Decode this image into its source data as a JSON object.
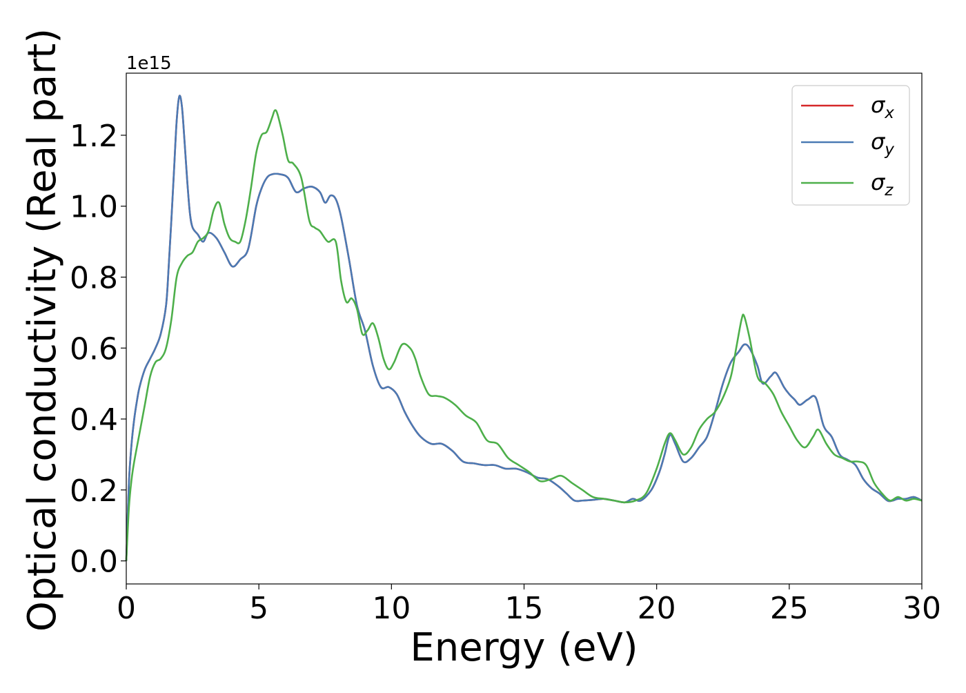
{
  "chart_data": {
    "type": "line",
    "xlabel": "Energy (eV)",
    "ylabel": "Optical conductivity (Real part)",
    "offset_text": "1e15",
    "xlim": [
      0,
      30
    ],
    "ylim": [
      -0.065,
      1.375
    ],
    "x_ticks": [
      0,
      5,
      10,
      15,
      20,
      25,
      30
    ],
    "x_tick_labels": [
      "0",
      "5",
      "10",
      "15",
      "20",
      "25",
      "30"
    ],
    "y_ticks": [
      0.0,
      0.2,
      0.4,
      0.6,
      0.8,
      1.0,
      1.2
    ],
    "y_tick_labels": [
      "0.0",
      "0.2",
      "0.4",
      "0.6",
      "0.8",
      "1.0",
      "1.2"
    ],
    "grid": false,
    "legend_position": "top-right",
    "series": [
      {
        "name": "σx",
        "legend_base": "σ",
        "legend_sub": "x",
        "color": "#d62728",
        "x": [
          0,
          0.1,
          0.2,
          0.3,
          0.4,
          0.5,
          0.7,
          0.9,
          1.1,
          1.3,
          1.5,
          1.6,
          1.7,
          1.8,
          1.9,
          2.0,
          2.1,
          2.2,
          2.3,
          2.4,
          2.5,
          2.7,
          2.9,
          3.1,
          3.4,
          3.7,
          4.0,
          4.3,
          4.6,
          4.9,
          5.1,
          5.3,
          5.5,
          5.8,
          6.1,
          6.4,
          6.7,
          7.0,
          7.3,
          7.5,
          7.7,
          7.9,
          8.1,
          8.4,
          8.7,
          9.0,
          9.3,
          9.6,
          9.9,
          10.2,
          10.5,
          10.8,
          11.1,
          11.5,
          11.9,
          12.3,
          12.7,
          13.1,
          13.5,
          13.9,
          14.3,
          14.7,
          15.1,
          15.5,
          15.9,
          16.3,
          16.6,
          16.9,
          17.2,
          17.6,
          18.0,
          18.4,
          18.8,
          19.1,
          19.4,
          19.8,
          20.1,
          20.3,
          20.5,
          20.7,
          21.0,
          21.3,
          21.6,
          21.9,
          22.2,
          22.5,
          22.8,
          23.1,
          23.3,
          23.5,
          23.8,
          24.0,
          24.3,
          24.5,
          24.8,
          25.0,
          25.2,
          25.4,
          25.7,
          26.0,
          26.3,
          26.6,
          26.9,
          27.2,
          27.5,
          27.8,
          28.1,
          28.4,
          28.7,
          28.9,
          29.1,
          29.4,
          29.7,
          30.0
        ],
        "y": [
          0.0,
          0.22,
          0.33,
          0.4,
          0.45,
          0.49,
          0.54,
          0.57,
          0.6,
          0.64,
          0.72,
          0.83,
          0.96,
          1.1,
          1.24,
          1.31,
          1.28,
          1.18,
          1.07,
          0.98,
          0.94,
          0.92,
          0.9,
          0.925,
          0.91,
          0.87,
          0.83,
          0.85,
          0.88,
          1.0,
          1.05,
          1.08,
          1.09,
          1.09,
          1.08,
          1.04,
          1.05,
          1.055,
          1.04,
          1.01,
          1.03,
          1.02,
          0.97,
          0.85,
          0.72,
          0.65,
          0.55,
          0.49,
          0.49,
          0.47,
          0.42,
          0.38,
          0.35,
          0.33,
          0.33,
          0.31,
          0.28,
          0.275,
          0.27,
          0.27,
          0.26,
          0.26,
          0.25,
          0.235,
          0.23,
          0.21,
          0.19,
          0.17,
          0.17,
          0.172,
          0.175,
          0.17,
          0.165,
          0.175,
          0.17,
          0.2,
          0.25,
          0.3,
          0.355,
          0.33,
          0.28,
          0.29,
          0.32,
          0.35,
          0.42,
          0.5,
          0.56,
          0.59,
          0.61,
          0.6,
          0.55,
          0.5,
          0.52,
          0.53,
          0.49,
          0.47,
          0.455,
          0.44,
          0.455,
          0.46,
          0.38,
          0.35,
          0.3,
          0.285,
          0.27,
          0.23,
          0.205,
          0.19,
          0.17,
          0.17,
          0.175,
          0.175,
          0.18,
          0.17
        ]
      },
      {
        "name": "σy",
        "legend_base": "σ",
        "legend_sub": "y",
        "color": "#4a7ab4",
        "x": [
          0,
          0.1,
          0.2,
          0.3,
          0.4,
          0.5,
          0.7,
          0.9,
          1.1,
          1.3,
          1.5,
          1.6,
          1.7,
          1.8,
          1.9,
          2.0,
          2.1,
          2.2,
          2.3,
          2.4,
          2.5,
          2.7,
          2.9,
          3.1,
          3.4,
          3.7,
          4.0,
          4.3,
          4.6,
          4.9,
          5.1,
          5.3,
          5.5,
          5.8,
          6.1,
          6.4,
          6.7,
          7.0,
          7.3,
          7.5,
          7.7,
          7.9,
          8.1,
          8.4,
          8.7,
          9.0,
          9.3,
          9.6,
          9.9,
          10.2,
          10.5,
          10.8,
          11.1,
          11.5,
          11.9,
          12.3,
          12.7,
          13.1,
          13.5,
          13.9,
          14.3,
          14.7,
          15.1,
          15.5,
          15.9,
          16.3,
          16.6,
          16.9,
          17.2,
          17.6,
          18.0,
          18.4,
          18.8,
          19.1,
          19.4,
          19.8,
          20.1,
          20.3,
          20.5,
          20.7,
          21.0,
          21.3,
          21.6,
          21.9,
          22.2,
          22.5,
          22.8,
          23.1,
          23.3,
          23.5,
          23.8,
          24.0,
          24.3,
          24.5,
          24.8,
          25.0,
          25.2,
          25.4,
          25.7,
          26.0,
          26.3,
          26.6,
          26.9,
          27.2,
          27.5,
          27.8,
          28.1,
          28.4,
          28.7,
          28.9,
          29.1,
          29.4,
          29.7,
          30.0
        ],
        "y": [
          0.0,
          0.22,
          0.33,
          0.4,
          0.45,
          0.49,
          0.54,
          0.57,
          0.6,
          0.64,
          0.72,
          0.83,
          0.96,
          1.1,
          1.24,
          1.31,
          1.28,
          1.18,
          1.07,
          0.98,
          0.94,
          0.92,
          0.9,
          0.925,
          0.91,
          0.87,
          0.83,
          0.85,
          0.88,
          1.0,
          1.05,
          1.08,
          1.09,
          1.09,
          1.08,
          1.04,
          1.05,
          1.055,
          1.04,
          1.01,
          1.03,
          1.02,
          0.97,
          0.85,
          0.72,
          0.65,
          0.55,
          0.49,
          0.49,
          0.47,
          0.42,
          0.38,
          0.35,
          0.33,
          0.33,
          0.31,
          0.28,
          0.275,
          0.27,
          0.27,
          0.26,
          0.26,
          0.25,
          0.235,
          0.23,
          0.21,
          0.19,
          0.17,
          0.17,
          0.172,
          0.175,
          0.17,
          0.165,
          0.175,
          0.17,
          0.2,
          0.25,
          0.3,
          0.355,
          0.33,
          0.28,
          0.29,
          0.32,
          0.35,
          0.42,
          0.5,
          0.56,
          0.59,
          0.61,
          0.6,
          0.55,
          0.5,
          0.52,
          0.53,
          0.49,
          0.47,
          0.455,
          0.44,
          0.455,
          0.46,
          0.38,
          0.35,
          0.3,
          0.285,
          0.27,
          0.23,
          0.205,
          0.19,
          0.17,
          0.17,
          0.175,
          0.175,
          0.18,
          0.17
        ]
      },
      {
        "name": "σz",
        "legend_base": "σ",
        "legend_sub": "z",
        "color": "#4daf4a",
        "x": [
          0,
          0.1,
          0.2,
          0.3,
          0.5,
          0.7,
          0.9,
          1.1,
          1.3,
          1.5,
          1.7,
          1.9,
          2.1,
          2.3,
          2.5,
          2.7,
          2.9,
          3.1,
          3.3,
          3.5,
          3.7,
          3.9,
          4.1,
          4.3,
          4.5,
          4.7,
          4.9,
          5.1,
          5.3,
          5.5,
          5.6,
          5.7,
          5.9,
          6.1,
          6.3,
          6.6,
          6.9,
          7.1,
          7.3,
          7.6,
          7.9,
          8.1,
          8.3,
          8.5,
          8.7,
          8.9,
          9.1,
          9.3,
          9.5,
          9.7,
          9.9,
          10.1,
          10.4,
          10.7,
          10.9,
          11.1,
          11.4,
          11.7,
          12.0,
          12.4,
          12.8,
          13.2,
          13.6,
          14.0,
          14.4,
          14.8,
          15.2,
          15.6,
          16.0,
          16.4,
          16.8,
          17.2,
          17.6,
          18.0,
          18.4,
          18.8,
          19.2,
          19.6,
          20.0,
          20.3,
          20.5,
          20.7,
          21.0,
          21.3,
          21.6,
          21.9,
          22.2,
          22.5,
          22.8,
          23.0,
          23.2,
          23.3,
          23.5,
          23.8,
          24.1,
          24.4,
          24.7,
          25.0,
          25.3,
          25.6,
          25.9,
          26.1,
          26.4,
          26.7,
          27.0,
          27.3,
          27.6,
          27.9,
          28.2,
          28.5,
          28.8,
          29.1,
          29.4,
          29.7,
          30.0
        ],
        "y": [
          0.0,
          0.15,
          0.23,
          0.28,
          0.36,
          0.44,
          0.52,
          0.56,
          0.57,
          0.6,
          0.68,
          0.8,
          0.84,
          0.86,
          0.87,
          0.9,
          0.91,
          0.93,
          0.99,
          1.01,
          0.95,
          0.91,
          0.9,
          0.9,
          0.96,
          1.05,
          1.15,
          1.2,
          1.21,
          1.25,
          1.27,
          1.26,
          1.2,
          1.13,
          1.12,
          1.08,
          0.96,
          0.94,
          0.93,
          0.9,
          0.9,
          0.79,
          0.73,
          0.74,
          0.71,
          0.64,
          0.65,
          0.67,
          0.63,
          0.57,
          0.54,
          0.56,
          0.61,
          0.6,
          0.57,
          0.52,
          0.47,
          0.465,
          0.46,
          0.44,
          0.41,
          0.39,
          0.34,
          0.33,
          0.29,
          0.27,
          0.25,
          0.225,
          0.23,
          0.24,
          0.22,
          0.2,
          0.18,
          0.175,
          0.17,
          0.165,
          0.17,
          0.19,
          0.26,
          0.33,
          0.36,
          0.34,
          0.3,
          0.32,
          0.37,
          0.4,
          0.42,
          0.46,
          0.52,
          0.6,
          0.68,
          0.69,
          0.63,
          0.52,
          0.5,
          0.47,
          0.42,
          0.38,
          0.34,
          0.32,
          0.35,
          0.37,
          0.33,
          0.3,
          0.29,
          0.28,
          0.28,
          0.27,
          0.22,
          0.19,
          0.17,
          0.18,
          0.17,
          0.175,
          0.17
        ]
      }
    ]
  }
}
